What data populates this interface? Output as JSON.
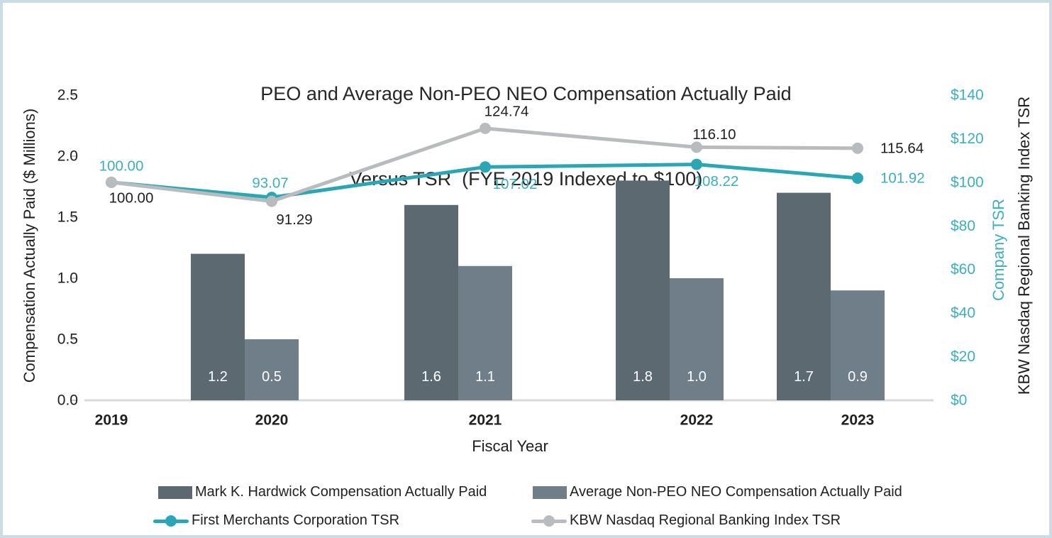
{
  "title": {
    "line1": "PEO and Average Non-PEO NEO Compensation Actually Paid",
    "line2": "Versus TSR  (FYE 2019 Indexed to $100)"
  },
  "axes": {
    "left": {
      "title": "Compensation Actually Paid ($ Millions)",
      "ticks": [
        "0.0",
        "0.5",
        "1.0",
        "1.5",
        "2.0",
        "2.5"
      ]
    },
    "right": {
      "title_primary": "Company TSR",
      "title_secondary": "KBW Nasdaq Regional Banking Index TSR",
      "ticks": [
        "$0",
        "$20",
        "$40",
        "$60",
        "$80",
        "$100",
        "$120",
        "$140"
      ]
    },
    "x": {
      "title": "Fiscal Year",
      "categories": [
        "2019",
        "2020",
        "2021",
        "2022",
        "2023"
      ]
    }
  },
  "colors": {
    "bar_dark": "#5c6971",
    "bar_light": "#6f7e88",
    "teal_line": "#2aa7b5",
    "teal_text": "#3cafbd",
    "gray_line": "#b9bcbe",
    "black_text": "#1f1f1f",
    "axis_line": "#d9d9d9",
    "tick_mark": "#c9c9c9",
    "bar_label": "#ffffff",
    "frame_border": "#ccdce4"
  },
  "chart_data": {
    "type": "combo-bar-line",
    "categories": [
      "2019",
      "2020",
      "2021",
      "2022",
      "2023"
    ],
    "left_axis": {
      "label": "Compensation Actually Paid ($ Millions)",
      "ylim": [
        0,
        2.5
      ],
      "tick_step": 0.5
    },
    "right_axis": {
      "label": "Company TSR / KBW Nasdaq Regional Banking Index TSR",
      "ylim": [
        0,
        140
      ],
      "tick_step": 20,
      "tick_format": "$"
    },
    "xlabel": "Fiscal Year",
    "grid": false,
    "legend_position": "bottom",
    "bar_series": [
      {
        "name": "Mark K. Hardwick Compensation Actually Paid",
        "axis": "left",
        "color": "#5c6971",
        "values": [
          null,
          1.2,
          1.6,
          1.8,
          1.7
        ],
        "labels": [
          "",
          "1.2",
          "1.6",
          "1.8",
          "1.7"
        ]
      },
      {
        "name": "Average Non-PEO NEO Compensation Actually Paid",
        "axis": "left",
        "color": "#6f7e88",
        "values": [
          null,
          0.5,
          1.1,
          1.0,
          0.9
        ],
        "labels": [
          "",
          "0.5",
          "1.1",
          "1.0",
          "0.9"
        ]
      }
    ],
    "line_series": [
      {
        "name": "First Merchants Corporation TSR",
        "axis": "right",
        "color": "#2aa7b5",
        "label_color": "#3cafbd",
        "values": [
          100.0,
          93.07,
          107.02,
          108.22,
          101.92
        ],
        "labels": [
          "100.00",
          "93.07",
          "107.02",
          "108.22",
          "101.92"
        ]
      },
      {
        "name": "KBW Nasdaq Regional Banking Index TSR",
        "axis": "right",
        "color": "#b9bcbe",
        "label_color": "#1f1f1f",
        "values": [
          100.0,
          91.29,
          124.74,
          116.1,
          115.64
        ],
        "labels": [
          "100.00",
          "91.29",
          "124.74",
          "116.10",
          "115.64"
        ]
      }
    ]
  },
  "legend": {
    "items": [
      {
        "label": "Mark K. Hardwick Compensation Actually Paid",
        "marker": "square-dark"
      },
      {
        "label": "Average Non-PEO NEO Compensation Actually Paid",
        "marker": "square-light"
      },
      {
        "label": "First Merchants Corporation TSR",
        "marker": "teal-line"
      },
      {
        "label": "KBW Nasdaq Regional Banking Index TSR",
        "marker": "gray-line"
      }
    ]
  }
}
